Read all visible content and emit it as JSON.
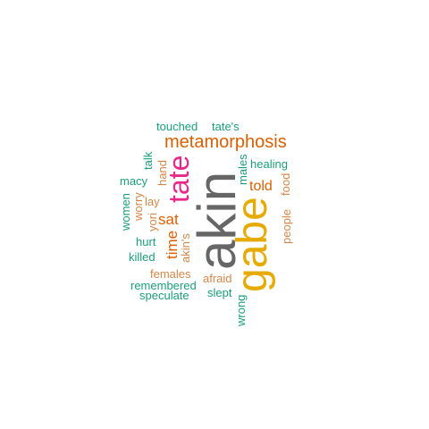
{
  "palette": {
    "gray": "#666666",
    "gold": "#e6ab02",
    "pink": "#e7298a",
    "orange": "#d95f02",
    "teal": "#1b9e77",
    "tan": "#d1874a"
  },
  "words": [
    {
      "text": "akin",
      "color": "gray",
      "vertical": true,
      "weight": 10
    },
    {
      "text": "gabe",
      "color": "gold",
      "vertical": true,
      "weight": 8
    },
    {
      "text": "tate",
      "color": "pink",
      "vertical": true,
      "weight": 6
    },
    {
      "text": "metamorphosis",
      "color": "orange",
      "vertical": false,
      "weight": 4
    },
    {
      "text": "time",
      "color": "orange",
      "vertical": true,
      "weight": 3
    },
    {
      "text": "sat",
      "color": "orange",
      "vertical": false,
      "weight": 3
    },
    {
      "text": "told",
      "color": "orange",
      "vertical": false,
      "weight": 3
    },
    {
      "text": "touched",
      "color": "teal",
      "vertical": false,
      "weight": 2
    },
    {
      "text": "tate's",
      "color": "teal",
      "vertical": false,
      "weight": 2
    },
    {
      "text": "talk",
      "color": "teal",
      "vertical": true,
      "weight": 2
    },
    {
      "text": "hand",
      "color": "tan",
      "vertical": true,
      "weight": 2
    },
    {
      "text": "macy",
      "color": "teal",
      "vertical": false,
      "weight": 2
    },
    {
      "text": "lay",
      "color": "tan",
      "vertical": false,
      "weight": 2
    },
    {
      "text": "women",
      "color": "teal",
      "vertical": true,
      "weight": 2
    },
    {
      "text": "worry",
      "color": "tan",
      "vertical": true,
      "weight": 2
    },
    {
      "text": "yori",
      "color": "tan",
      "vertical": true,
      "weight": 2
    },
    {
      "text": "hurt",
      "color": "teal",
      "vertical": false,
      "weight": 2
    },
    {
      "text": "akin's",
      "color": "tan",
      "vertical": true,
      "weight": 2
    },
    {
      "text": "killed",
      "color": "teal",
      "vertical": false,
      "weight": 2
    },
    {
      "text": "females",
      "color": "tan",
      "vertical": false,
      "weight": 2
    },
    {
      "text": "remembered",
      "color": "teal",
      "vertical": false,
      "weight": 2
    },
    {
      "text": "speculate",
      "color": "teal",
      "vertical": false,
      "weight": 2
    },
    {
      "text": "afraid",
      "color": "tan",
      "vertical": false,
      "weight": 2
    },
    {
      "text": "slept",
      "color": "teal",
      "vertical": false,
      "weight": 2
    },
    {
      "text": "wrong",
      "color": "teal",
      "vertical": true,
      "weight": 2
    },
    {
      "text": "males",
      "color": "teal",
      "vertical": true,
      "weight": 2
    },
    {
      "text": "healing",
      "color": "teal",
      "vertical": false,
      "weight": 2
    },
    {
      "text": "food",
      "color": "tan",
      "vertical": true,
      "weight": 2
    },
    {
      "text": "people",
      "color": "tan",
      "vertical": true,
      "weight": 2
    }
  ]
}
